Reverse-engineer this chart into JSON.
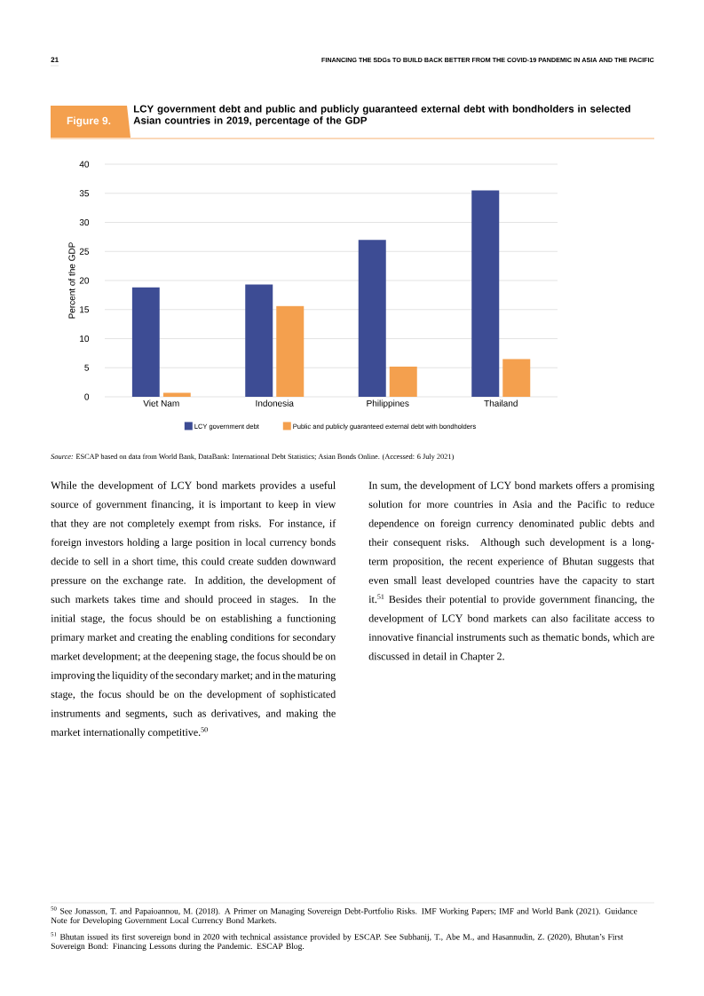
{
  "chart_data": {
    "type": "bar",
    "title": "LCY government debt and public and publicly guaranteed external debt with bondholders in selected Asian countries in 2019, percentage of the GDP",
    "ylabel": "Percent of the GDP",
    "categories": [
      "Viet Nam",
      "Indonesia",
      "Philippines",
      "Thailand"
    ],
    "series": [
      {
        "name": "LCY government debt",
        "color": "#3d4c94",
        "values": [
          18.8,
          19.3,
          27.0,
          35.5
        ]
      },
      {
        "name": "Public and publicly guaranteed external debt with bondholders",
        "color": "#f4a04e",
        "values": [
          0.7,
          15.6,
          5.2,
          6.5
        ]
      }
    ],
    "ylim": [
      0,
      40
    ],
    "yticks": [
      0,
      5,
      10,
      15,
      20,
      25,
      30,
      35,
      40
    ],
    "grid": "y",
    "legend": "bottom",
    "annotations": [
      "21",
      "FINANCING THE SDGs TO BUILD BACK BETTER FROM THE COVID-19 PANDEMIC IN ASIA AND THE PACIFIC",
      "Figure 9.",
      "*Source:* ESCAP based on data from World Bank, DataBank: International Debt Statistics; Asian Bonds Online. (Accessed: 6 July 2021)",
      "While the development of LCY bond markets provides a useful source of government financing, it is important to keep in view that they are not completely exempt from risks. For instance, if foreign investors holding a large position in local currency bonds decide to sell in a short time, this could create sudden downward pressure on the exchange rate. In addition, the development of such markets takes time and should proceed in stages. In the initial stage, the focus should be on establishing a functioning primary market and creating the enabling conditions for secondary market development; at the deepening stage, the focus should be on improving the liquidity of the secondary market; and in the maturing stage, the focus should be on the development of sophisticated instruments and segments, such as derivatives, and making the market internationally competitive.$^{50}$",
      "In sum, the development of LCY bond markets offers a promising solution for more countries in Asia and the Pacific to reduce dependence on foreign currency denominated public debts and their consequent risks. Although such development is a long-term proposition, the recent experience of Bhutan suggests that even small least developed countries have the capacity to start it.$^{51}$ Besides their potential to provide government financing, the development of LCY bond markets can also facilitate access to innovative financial instruments such as thematic bonds, which are discussed in detail in Chapter 2.",
      "$^{50}$ See Jonasson, T. and Papaioannou, M. (2018). A Primer on Managing Sovereign Debt-Portfolio Risks. IMF Working Papers; IMF and World Bank (2021). Guidance Note for Developing Government Local Currency Bond Markets.",
      "$^{51}$ Bhutan issued its first sovereign bond in 2020 with technical assistance provided by ESCAP. See Subhanij, T., Abe M., and Hasannudin, Z. (2020), Bhutan’s First Sovereign Bond: Financing Lessons during the Pandemic. ESCAP Blog."
    ]
  }
}
